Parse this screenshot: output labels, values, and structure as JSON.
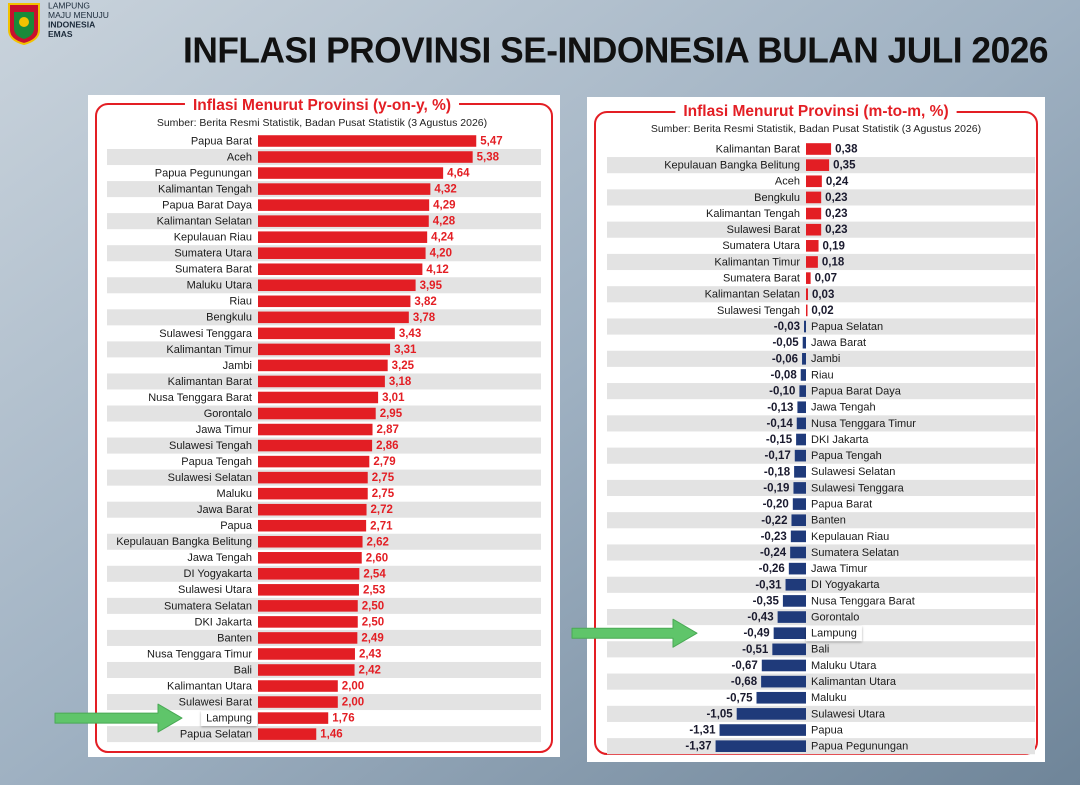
{
  "header": {
    "org_lines": [
      "LAMPUNG",
      "MAJU MENUJU",
      "INDONESIA",
      "EMAS"
    ],
    "title": "INFLASI PROVINSI  SE-INDONESIA BULAN JULI 2026"
  },
  "chart_data": [
    {
      "type": "bar",
      "orientation": "horizontal",
      "title": "Inflasi Menurut Provinsi (y-on-y, %)",
      "source": "Sumber: Berita Resmi Statistik, Badan Pusat Statistik (3 Agustus 2026)",
      "categories": [
        "Papua Barat",
        "Aceh",
        "Papua Pegunungan",
        "Kalimantan Tengah",
        "Papua Barat Daya",
        "Kalimantan Selatan",
        "Kepulauan Riau",
        "Sumatera Utara",
        "Sumatera Barat",
        "Maluku Utara",
        "Riau",
        "Bengkulu",
        "Sulawesi Tenggara",
        "Kalimantan Timur",
        "Jambi",
        "Kalimantan Barat",
        "Nusa Tenggara Barat",
        "Gorontalo",
        "Jawa Timur",
        "Sulawesi Tengah",
        "Papua Tengah",
        "Sulawesi Selatan",
        "Maluku",
        "Jawa Barat",
        "Papua",
        "Kepulauan Bangka Belitung",
        "Jawa Tengah",
        "DI Yogyakarta",
        "Sulawesi Utara",
        "Sumatera Selatan",
        "DKI Jakarta",
        "Banten",
        "Nusa Tenggara Timur",
        "Bali",
        "Kalimantan Utara",
        "Sulawesi Barat",
        "Lampung",
        "Papua Selatan"
      ],
      "values": [
        5.47,
        5.38,
        4.64,
        4.32,
        4.29,
        4.28,
        4.24,
        4.2,
        4.12,
        3.95,
        3.82,
        3.78,
        3.43,
        3.31,
        3.25,
        3.18,
        3.01,
        2.95,
        2.87,
        2.86,
        2.79,
        2.75,
        2.75,
        2.72,
        2.71,
        2.62,
        2.6,
        2.54,
        2.53,
        2.5,
        2.5,
        2.49,
        2.43,
        2.42,
        2.0,
        2.0,
        1.76,
        1.46
      ],
      "value_labels": [
        "5,47",
        "5,38",
        "4,64",
        "4,32",
        "4,29",
        "4,28",
        "4,24",
        "4,20",
        "4,12",
        "3,95",
        "3,82",
        "3,78",
        "3,43",
        "3,31",
        "3,25",
        "3,18",
        "3,01",
        "2,95",
        "2,87",
        "2,86",
        "2,79",
        "2,75",
        "2,75",
        "2,72",
        "2,71",
        "2,62",
        "2,60",
        "2,54",
        "2,53",
        "2,50",
        "2,50",
        "2,49",
        "2,43",
        "2,42",
        "2,00",
        "2,00",
        "1,76",
        "1,46"
      ],
      "positive_color": "#e31e24",
      "negative_color": "#1f3a7a",
      "value_label_color": "#e31e24",
      "highlight": "Lampung"
    },
    {
      "type": "bar",
      "orientation": "horizontal",
      "title": "Inflasi Menurut Provinsi (m-to-m, %)",
      "source": "Sumber: Berita Resmi Statistik, Badan Pusat Statistik (3 Agustus 2026)",
      "categories": [
        "Kalimantan Barat",
        "Kepulauan Bangka Belitung",
        "Aceh",
        "Bengkulu",
        "Kalimantan Tengah",
        "Sulawesi Barat",
        "Sumatera Utara",
        "Kalimantan Timur",
        "Sumatera Barat",
        "Kalimantan Selatan",
        "Sulawesi Tengah",
        "Papua Selatan",
        "Jawa Barat",
        "Jambi",
        "Riau",
        "Papua Barat Daya",
        "Jawa Tengah",
        "Nusa Tenggara Timur",
        "DKI Jakarta",
        "Papua Tengah",
        "Sulawesi Selatan",
        "Sulawesi Tenggara",
        "Papua Barat",
        "Banten",
        "Kepulauan Riau",
        "Sumatera Selatan",
        "Jawa Timur",
        "DI Yogyakarta",
        "Nusa Tenggara Barat",
        "Gorontalo",
        "Lampung",
        "Bali",
        "Maluku Utara",
        "Kalimantan Utara",
        "Maluku",
        "Sulawesi Utara",
        "Papua",
        "Papua Pegunungan"
      ],
      "values": [
        0.38,
        0.35,
        0.24,
        0.23,
        0.23,
        0.23,
        0.19,
        0.18,
        0.07,
        0.03,
        0.02,
        -0.03,
        -0.05,
        -0.06,
        -0.08,
        -0.1,
        -0.13,
        -0.14,
        -0.15,
        -0.17,
        -0.18,
        -0.19,
        -0.2,
        -0.22,
        -0.23,
        -0.24,
        -0.26,
        -0.31,
        -0.35,
        -0.43,
        -0.49,
        -0.51,
        -0.67,
        -0.68,
        -0.75,
        -1.05,
        -1.31,
        -1.37
      ],
      "value_labels": [
        "0,38",
        "0,35",
        "0,24",
        "0,23",
        "0,23",
        "0,23",
        "0,19",
        "0,18",
        "0,07",
        "0,03",
        "0,02",
        "-0,03",
        "-0,05",
        "-0,06",
        "-0,08",
        "-0,10",
        "-0,13",
        "-0,14",
        "-0,15",
        "-0,17",
        "-0,18",
        "-0,19",
        "-0,20",
        "-0,22",
        "-0,23",
        "-0,24",
        "-0,26",
        "-0,31",
        "-0,35",
        "-0,43",
        "-0,49",
        "-0,51",
        "-0,67",
        "-0,68",
        "-0,75",
        "-1,05",
        "-1,31",
        "-1,37"
      ],
      "positive_color": "#e31e24",
      "negative_color": "#1f3a7a",
      "value_label_color": "#1a1a2e",
      "highlight": "Lampung"
    }
  ]
}
